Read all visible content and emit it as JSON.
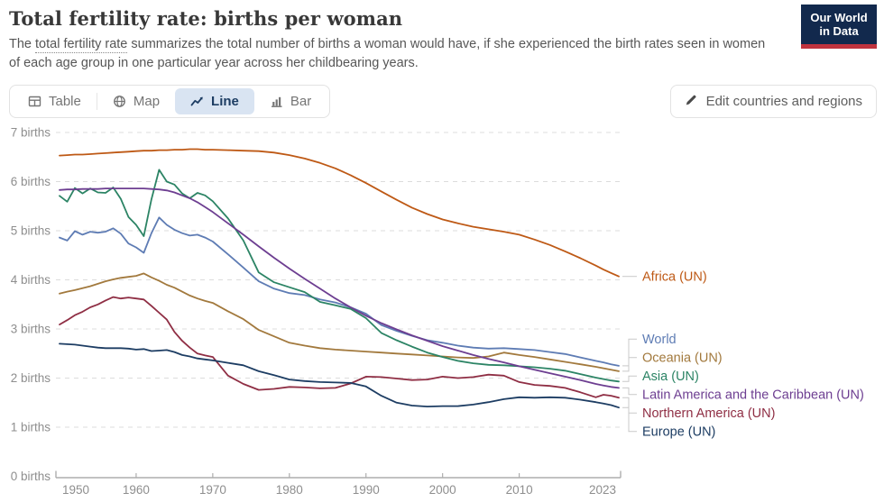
{
  "header": {
    "title": "Total fertility rate: births per woman",
    "subtitle_prefix": "The ",
    "subtitle_term": "total fertility rate",
    "subtitle_rest": " summarizes the total number of births a woman would have, if she experienced the birth rates seen in women of each age group in one particular year across her childbearing years.",
    "logo": {
      "line1": "Our World",
      "line2": "in Data",
      "bg": "#12294D",
      "stripe": "#C0333E"
    }
  },
  "toolbar": {
    "tabs": [
      {
        "label": "Table",
        "icon": "table-icon",
        "active": false
      },
      {
        "label": "Map",
        "icon": "globe-icon",
        "active": false
      },
      {
        "label": "Line",
        "icon": "line-chart-icon",
        "active": true
      },
      {
        "label": "Bar",
        "icon": "bar-chart-icon",
        "active": false
      }
    ],
    "active_bg": "#D9E4F2",
    "active_color": "#1D3D63",
    "edit_button": "Edit countries and regions"
  },
  "chart_data": {
    "type": "line",
    "title": "Total fertility rate: births per woman",
    "xlabel": "",
    "ylabel": "births per woman",
    "xlim": [
      1950,
      2023
    ],
    "ylim": [
      0,
      7
    ],
    "grid": "horizontal-dashed",
    "legend_position": "right-edge-labels",
    "xticks": [
      1950,
      1960,
      1970,
      1980,
      1990,
      2000,
      2010,
      2023
    ],
    "yticks": [
      0,
      1,
      2,
      3,
      4,
      5,
      6,
      7
    ],
    "ytick_labels": [
      "0 births",
      "1 births",
      "2 births",
      "3 births",
      "4 births",
      "5 births",
      "6 births",
      "7 births"
    ],
    "x": [
      1950,
      1951,
      1952,
      1953,
      1954,
      1955,
      1956,
      1957,
      1958,
      1959,
      1960,
      1961,
      1962,
      1963,
      1964,
      1965,
      1966,
      1967,
      1968,
      1969,
      1970,
      1972,
      1974,
      1976,
      1978,
      1980,
      1982,
      1984,
      1986,
      1988,
      1990,
      1992,
      1994,
      1996,
      1998,
      2000,
      2002,
      2004,
      2006,
      2008,
      2010,
      2012,
      2014,
      2016,
      2018,
      2020,
      2021,
      2022,
      2023
    ],
    "series": [
      {
        "name": "Africa (UN)",
        "color": "#BE5915",
        "values": [
          6.53,
          6.54,
          6.55,
          6.55,
          6.56,
          6.57,
          6.58,
          6.59,
          6.6,
          6.61,
          6.62,
          6.63,
          6.63,
          6.64,
          6.64,
          6.65,
          6.65,
          6.66,
          6.66,
          6.65,
          6.65,
          6.64,
          6.63,
          6.62,
          6.59,
          6.54,
          6.47,
          6.38,
          6.27,
          6.13,
          5.97,
          5.8,
          5.63,
          5.47,
          5.34,
          5.23,
          5.15,
          5.08,
          5.03,
          4.98,
          4.92,
          4.82,
          4.71,
          4.58,
          4.44,
          4.29,
          4.21,
          4.14,
          4.07
        ]
      },
      {
        "name": "World",
        "color": "#5E7CB4",
        "values": [
          4.86,
          4.8,
          4.99,
          4.92,
          4.98,
          4.96,
          4.98,
          5.05,
          4.94,
          4.74,
          4.66,
          4.55,
          4.95,
          5.27,
          5.12,
          5.02,
          4.95,
          4.9,
          4.92,
          4.86,
          4.78,
          4.52,
          4.25,
          3.97,
          3.82,
          3.73,
          3.69,
          3.6,
          3.54,
          3.44,
          3.31,
          3.08,
          2.96,
          2.86,
          2.77,
          2.72,
          2.66,
          2.62,
          2.6,
          2.61,
          2.59,
          2.57,
          2.53,
          2.49,
          2.42,
          2.35,
          2.32,
          2.28,
          2.25
        ]
      },
      {
        "name": "Oceania (UN)",
        "color": "#A2793D",
        "values": [
          3.72,
          3.76,
          3.79,
          3.83,
          3.87,
          3.92,
          3.97,
          4.01,
          4.04,
          4.06,
          4.08,
          4.13,
          4.05,
          3.98,
          3.9,
          3.84,
          3.76,
          3.68,
          3.62,
          3.57,
          3.53,
          3.36,
          3.2,
          2.98,
          2.85,
          2.72,
          2.66,
          2.61,
          2.58,
          2.56,
          2.54,
          2.52,
          2.5,
          2.48,
          2.46,
          2.44,
          2.42,
          2.41,
          2.44,
          2.52,
          2.47,
          2.43,
          2.38,
          2.33,
          2.28,
          2.23,
          2.2,
          2.17,
          2.14
        ]
      },
      {
        "name": "Asia (UN)",
        "color": "#2C8465",
        "values": [
          5.71,
          5.59,
          5.87,
          5.76,
          5.86,
          5.78,
          5.77,
          5.88,
          5.65,
          5.28,
          5.12,
          4.89,
          5.64,
          6.24,
          6.0,
          5.94,
          5.76,
          5.66,
          5.77,
          5.72,
          5.6,
          5.25,
          4.8,
          4.15,
          3.95,
          3.85,
          3.75,
          3.55,
          3.48,
          3.41,
          3.22,
          2.92,
          2.77,
          2.64,
          2.52,
          2.43,
          2.35,
          2.3,
          2.27,
          2.26,
          2.24,
          2.22,
          2.19,
          2.15,
          2.08,
          2.01,
          1.98,
          1.95,
          1.93
        ]
      },
      {
        "name": "Latin America and the Caribbean (UN)",
        "color": "#6D3E91",
        "values": [
          5.83,
          5.84,
          5.84,
          5.85,
          5.85,
          5.85,
          5.86,
          5.86,
          5.86,
          5.86,
          5.86,
          5.86,
          5.85,
          5.84,
          5.82,
          5.78,
          5.72,
          5.66,
          5.58,
          5.48,
          5.38,
          5.15,
          4.92,
          4.68,
          4.45,
          4.23,
          4.02,
          3.82,
          3.62,
          3.44,
          3.27,
          3.12,
          2.99,
          2.87,
          2.76,
          2.65,
          2.56,
          2.47,
          2.39,
          2.32,
          2.24,
          2.17,
          2.1,
          2.03,
          1.96,
          1.88,
          1.85,
          1.82,
          1.8
        ]
      },
      {
        "name": "Northern America (UN)",
        "color": "#8F2E44",
        "values": [
          3.09,
          3.18,
          3.28,
          3.35,
          3.44,
          3.5,
          3.58,
          3.65,
          3.62,
          3.64,
          3.62,
          3.6,
          3.47,
          3.33,
          3.19,
          2.94,
          2.76,
          2.62,
          2.5,
          2.46,
          2.43,
          2.05,
          1.88,
          1.76,
          1.78,
          1.82,
          1.81,
          1.79,
          1.8,
          1.89,
          2.03,
          2.02,
          1.99,
          1.96,
          1.97,
          2.03,
          2.0,
          2.02,
          2.07,
          2.05,
          1.92,
          1.86,
          1.84,
          1.8,
          1.71,
          1.61,
          1.66,
          1.64,
          1.6
        ]
      },
      {
        "name": "Europe (UN)",
        "color": "#1D3D63",
        "values": [
          2.7,
          2.69,
          2.68,
          2.66,
          2.64,
          2.62,
          2.61,
          2.61,
          2.61,
          2.6,
          2.58,
          2.59,
          2.55,
          2.56,
          2.57,
          2.53,
          2.47,
          2.44,
          2.4,
          2.38,
          2.36,
          2.31,
          2.26,
          2.14,
          2.06,
          1.97,
          1.94,
          1.92,
          1.91,
          1.9,
          1.83,
          1.64,
          1.5,
          1.44,
          1.42,
          1.43,
          1.43,
          1.46,
          1.51,
          1.57,
          1.61,
          1.6,
          1.61,
          1.6,
          1.56,
          1.51,
          1.48,
          1.45,
          1.4
        ]
      }
    ]
  }
}
